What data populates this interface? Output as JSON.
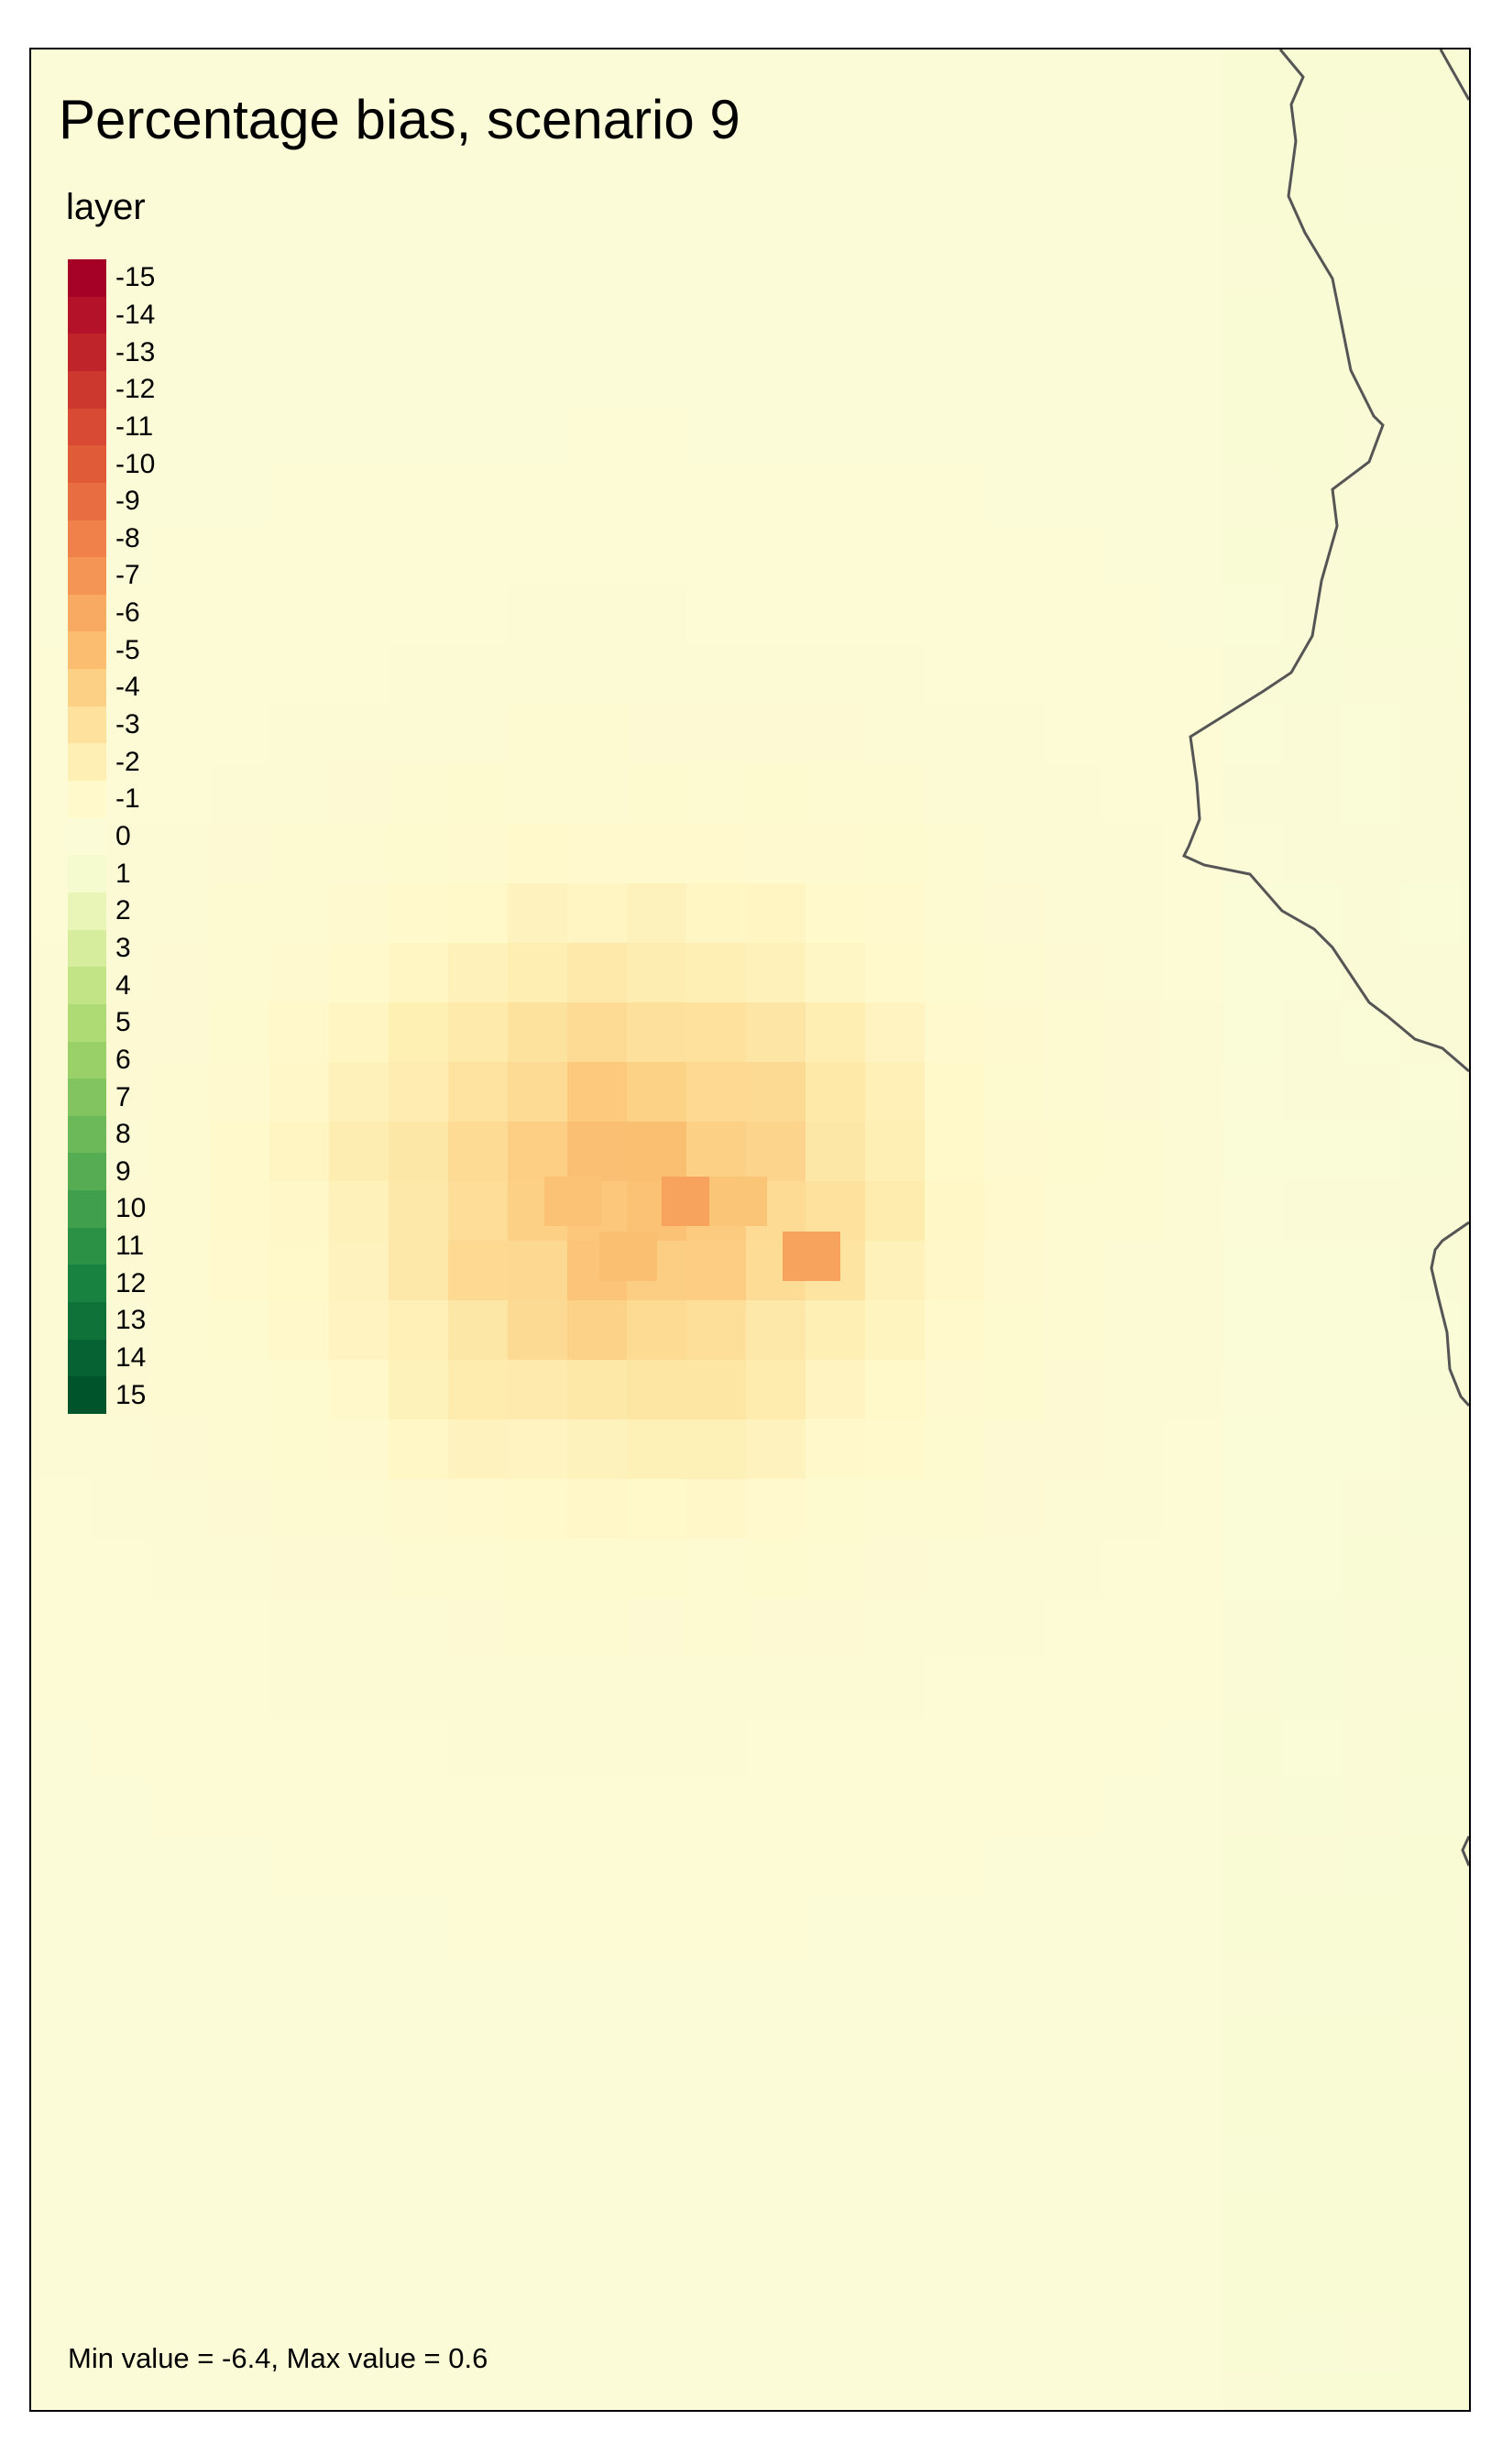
{
  "map": {
    "title": "Percentage bias, scenario 9",
    "background_color": "#fbf8b8",
    "outline_color": "#555555",
    "note": "Min value = -6.4, Max value = 0.6"
  },
  "legend": {
    "title": "layer",
    "values": [
      "-15",
      "-14",
      "-13",
      "-12",
      "-11",
      "-10",
      "-9",
      "-8",
      "-7",
      "-6",
      "-5",
      "-4",
      "-3",
      "-2",
      "-1",
      "0",
      "1",
      "2",
      "3",
      "4",
      "5",
      "6",
      "7",
      "8",
      "9",
      "10",
      "11",
      "12",
      "13",
      "14",
      "15"
    ],
    "colors": [
      "#a50026",
      "#b31228",
      "#c0242b",
      "#cc372e",
      "#d84a33",
      "#e05c39",
      "#e86e41",
      "#f0814a",
      "#f59555",
      "#f8aa62",
      "#fbbd70",
      "#fcd085",
      "#fde19c",
      "#feefb4",
      "#fff9cc",
      "#fbfbd8",
      "#f5fbcf",
      "#e8f5b6",
      "#d6ed9d",
      "#c3e486",
      "#afdb75",
      "#99d067",
      "#82c45f",
      "#6bb958",
      "#55ac53",
      "#3f9f4c",
      "#2a9145",
      "#188240",
      "#0e7239",
      "#066233",
      "#00542b"
    ]
  },
  "raster_data": {
    "description_units": "percentage bias",
    "min_value": -6.4,
    "max_value": 0.6,
    "hotspot_values": [
      {
        "value": -6.4
      },
      {
        "value": -5.9
      },
      {
        "value": -5.2
      },
      {
        "value": -4.8
      },
      {
        "value": -4.3
      },
      {
        "value": -3.7
      },
      {
        "value": -3.1
      },
      {
        "value": -2.4
      },
      {
        "value": -1.7
      },
      {
        "value": -1.0
      },
      {
        "value": -0.4
      },
      {
        "value": 0.6
      }
    ]
  }
}
